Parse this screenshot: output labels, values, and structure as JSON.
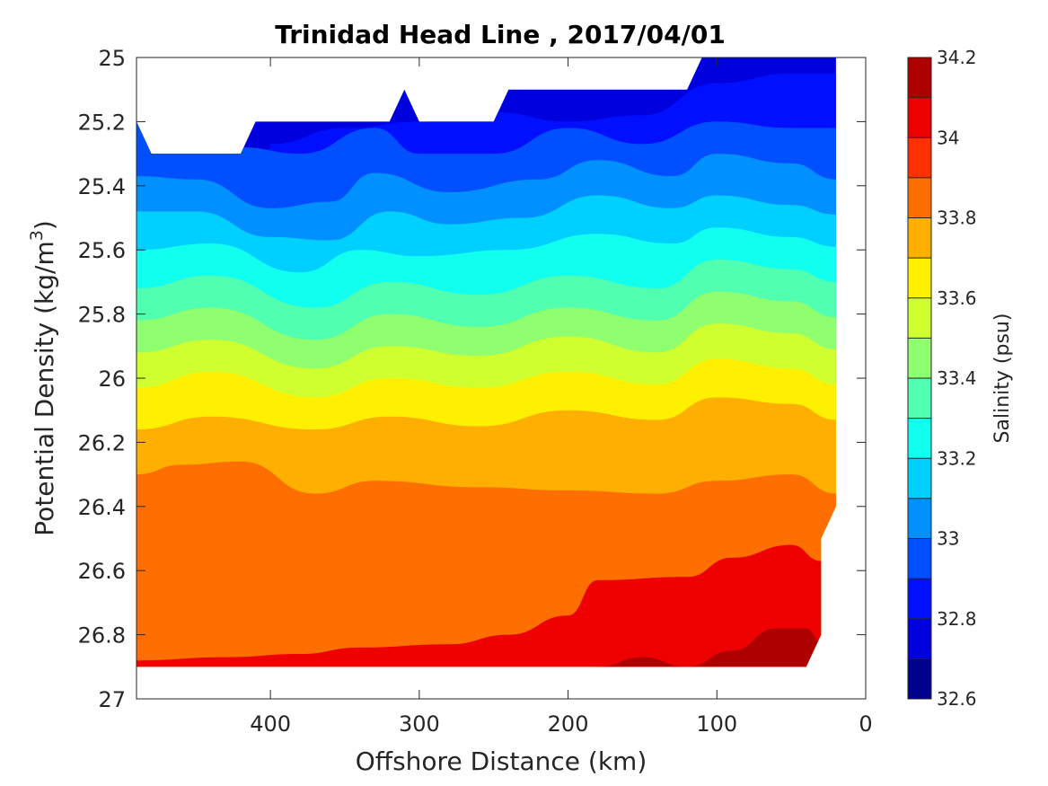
{
  "chart_data": {
    "type": "contour",
    "title": "Trinidad Head Line , 2017/04/01",
    "xlabel": "Offshore Distance (km)",
    "ylabel_main": "Potential Density (kg/m",
    "ylabel_sup": "3",
    "ylabel_close": ")",
    "xlim": [
      490,
      0
    ],
    "ylim": [
      25,
      27
    ],
    "xticks": [
      400,
      300,
      200,
      100,
      0
    ],
    "xtick_labels": [
      "400",
      "300",
      "200",
      "100",
      "0"
    ],
    "yticks": [
      25,
      25.2,
      25.4,
      25.6,
      25.8,
      26,
      26.2,
      26.4,
      26.6,
      26.8,
      27
    ],
    "ytick_labels": [
      "25",
      "25.2",
      "25.4",
      "25.6",
      "25.8",
      "26",
      "26.2",
      "26.4",
      "26.6",
      "26.8",
      "27"
    ],
    "colorbar": {
      "label": "Salinity (psu)",
      "range": [
        32.6,
        34.2
      ],
      "levels": [
        32.6,
        32.7,
        32.8,
        32.9,
        33.0,
        33.1,
        33.2,
        33.3,
        33.4,
        33.5,
        33.6,
        33.7,
        33.8,
        33.9,
        34.0,
        34.1,
        34.2
      ],
      "colors": [
        "#00008F",
        "#0000DF",
        "#0010FF",
        "#0050FF",
        "#0090FF",
        "#00D0FF",
        "#10FFEF",
        "#50FFAF",
        "#90FF6F",
        "#D0FF2F",
        "#FFEF00",
        "#FFAF00",
        "#FF6F00",
        "#FF3000",
        "#EF0000",
        "#AF0000"
      ],
      "ticks": [
        32.6,
        32.8,
        33.0,
        33.2,
        33.4,
        33.6,
        33.8,
        34.0,
        34.2
      ],
      "tick_labels": [
        "32.6",
        "32.8",
        "33",
        "33.2",
        "33.4",
        "33.6",
        "33.8",
        "34",
        "34.2"
      ]
    },
    "data_extent": {
      "x_max": 490,
      "x_min": 20,
      "top_boundary": [
        [
          490,
          25.2
        ],
        [
          480,
          25.3
        ],
        [
          420,
          25.3
        ],
        [
          410,
          25.2
        ],
        [
          320,
          25.2
        ],
        [
          310,
          25.1
        ],
        [
          300,
          25.2
        ],
        [
          250,
          25.2
        ],
        [
          240,
          25.1
        ],
        [
          120,
          25.1
        ],
        [
          110,
          25.0
        ],
        [
          20,
          25.0
        ]
      ],
      "bottom_boundary": [
        [
          20,
          26.4
        ],
        [
          30,
          26.5
        ],
        [
          30,
          26.8
        ],
        [
          40,
          26.9
        ],
        [
          490,
          26.9
        ]
      ]
    },
    "salinity_isolines": [
      {
        "level": 32.8,
        "points": [
          [
            400,
            25.27
          ],
          [
            350,
            25.22
          ],
          [
            300,
            25.2
          ],
          [
            250,
            25.17
          ],
          [
            200,
            25.2
          ],
          [
            150,
            25.18
          ],
          [
            100,
            25.08
          ],
          [
            50,
            25.05
          ],
          [
            20,
            25.05
          ]
        ]
      },
      {
        "level": 32.9,
        "points": [
          [
            490,
            25.2
          ],
          [
            420,
            25.28
          ],
          [
            380,
            25.3
          ],
          [
            330,
            25.22
          ],
          [
            300,
            25.3
          ],
          [
            250,
            25.3
          ],
          [
            200,
            25.22
          ],
          [
            150,
            25.27
          ],
          [
            100,
            25.2
          ],
          [
            50,
            25.22
          ],
          [
            20,
            25.22
          ]
        ]
      },
      {
        "level": 33.0,
        "points": [
          [
            490,
            25.37
          ],
          [
            450,
            25.38
          ],
          [
            400,
            25.47
          ],
          [
            360,
            25.45
          ],
          [
            330,
            25.36
          ],
          [
            280,
            25.42
          ],
          [
            220,
            25.38
          ],
          [
            180,
            25.32
          ],
          [
            130,
            25.37
          ],
          [
            100,
            25.3
          ],
          [
            50,
            25.33
          ],
          [
            20,
            25.38
          ]
        ]
      },
      {
        "level": 33.1,
        "points": [
          [
            490,
            25.48
          ],
          [
            450,
            25.48
          ],
          [
            400,
            25.56
          ],
          [
            360,
            25.57
          ],
          [
            320,
            25.48
          ],
          [
            280,
            25.52
          ],
          [
            230,
            25.5
          ],
          [
            180,
            25.43
          ],
          [
            130,
            25.47
          ],
          [
            100,
            25.43
          ],
          [
            50,
            25.46
          ],
          [
            20,
            25.49
          ]
        ]
      },
      {
        "level": 33.2,
        "points": [
          [
            490,
            25.6
          ],
          [
            440,
            25.58
          ],
          [
            380,
            25.67
          ],
          [
            340,
            25.6
          ],
          [
            300,
            25.62
          ],
          [
            240,
            25.6
          ],
          [
            180,
            25.55
          ],
          [
            130,
            25.58
          ],
          [
            100,
            25.53
          ],
          [
            50,
            25.56
          ],
          [
            20,
            25.59
          ]
        ]
      },
      {
        "level": 33.3,
        "points": [
          [
            490,
            25.72
          ],
          [
            440,
            25.68
          ],
          [
            370,
            25.78
          ],
          [
            320,
            25.7
          ],
          [
            260,
            25.74
          ],
          [
            200,
            25.68
          ],
          [
            140,
            25.72
          ],
          [
            100,
            25.63
          ],
          [
            50,
            25.66
          ],
          [
            20,
            25.7
          ]
        ]
      },
      {
        "level": 33.4,
        "points": [
          [
            490,
            25.82
          ],
          [
            440,
            25.78
          ],
          [
            370,
            25.88
          ],
          [
            320,
            25.8
          ],
          [
            260,
            25.84
          ],
          [
            200,
            25.78
          ],
          [
            140,
            25.82
          ],
          [
            100,
            25.73
          ],
          [
            50,
            25.76
          ],
          [
            20,
            25.81
          ]
        ]
      },
      {
        "level": 33.5,
        "points": [
          [
            490,
            25.92
          ],
          [
            440,
            25.88
          ],
          [
            370,
            25.97
          ],
          [
            320,
            25.9
          ],
          [
            260,
            25.93
          ],
          [
            200,
            25.87
          ],
          [
            140,
            25.92
          ],
          [
            100,
            25.83
          ],
          [
            50,
            25.86
          ],
          [
            20,
            25.91
          ]
        ]
      },
      {
        "level": 33.6,
        "points": [
          [
            490,
            26.03
          ],
          [
            440,
            25.98
          ],
          [
            370,
            26.06
          ],
          [
            320,
            26.0
          ],
          [
            260,
            26.03
          ],
          [
            200,
            25.98
          ],
          [
            140,
            26.02
          ],
          [
            100,
            25.94
          ],
          [
            50,
            25.97
          ],
          [
            20,
            26.02
          ]
        ]
      },
      {
        "level": 33.7,
        "points": [
          [
            490,
            26.16
          ],
          [
            440,
            26.12
          ],
          [
            370,
            26.16
          ],
          [
            320,
            26.12
          ],
          [
            260,
            26.15
          ],
          [
            200,
            26.1
          ],
          [
            140,
            26.13
          ],
          [
            100,
            26.06
          ],
          [
            50,
            26.08
          ],
          [
            20,
            26.13
          ]
        ]
      },
      {
        "level": 33.8,
        "points": [
          [
            490,
            26.3
          ],
          [
            460,
            26.27
          ],
          [
            420,
            26.26
          ],
          [
            370,
            26.36
          ],
          [
            330,
            26.32
          ],
          [
            260,
            26.34
          ],
          [
            200,
            26.35
          ],
          [
            140,
            26.36
          ],
          [
            100,
            26.32
          ],
          [
            50,
            26.3
          ],
          [
            20,
            26.36
          ]
        ]
      },
      {
        "level": 34.0,
        "points": [
          [
            490,
            26.88
          ],
          [
            430,
            26.87
          ],
          [
            380,
            26.86
          ],
          [
            340,
            26.84
          ],
          [
            280,
            26.83
          ],
          [
            240,
            26.8
          ],
          [
            200,
            26.74
          ],
          [
            180,
            26.63
          ],
          [
            120,
            26.62
          ],
          [
            90,
            26.56
          ],
          [
            50,
            26.52
          ],
          [
            30,
            26.57
          ]
        ]
      },
      {
        "level": 34.1,
        "points": [
          [
            180,
            26.9
          ],
          [
            150,
            26.87
          ],
          [
            120,
            26.9
          ],
          [
            90,
            26.85
          ],
          [
            60,
            26.78
          ],
          [
            40,
            26.78
          ],
          [
            30,
            26.82
          ]
        ]
      }
    ]
  }
}
